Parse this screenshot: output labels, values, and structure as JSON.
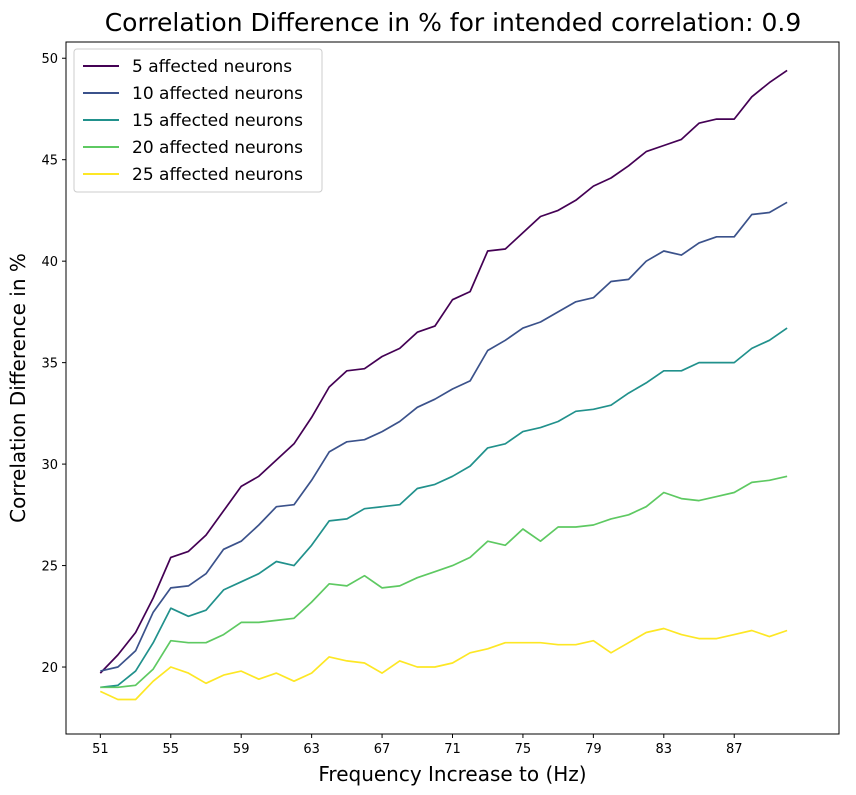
{
  "chart_data": {
    "type": "line",
    "title": "Correlation Difference in % for intended correlation:  0.9",
    "xlabel": "Frequency Increase to (Hz)",
    "ylabel": "Correlation Difference in %",
    "xlim": [
      49.05,
      92.95
    ],
    "ylim": [
      16.7,
      50.8
    ],
    "xticks": [
      51,
      55,
      59,
      63,
      67,
      71,
      75,
      79,
      83,
      87
    ],
    "yticks": [
      20,
      25,
      30,
      35,
      40,
      45,
      50
    ],
    "grid": false,
    "legend_position": "top-left",
    "x": [
      51,
      52,
      53,
      54,
      55,
      56,
      57,
      58,
      59,
      60,
      61,
      62,
      63,
      64,
      65,
      66,
      67,
      68,
      69,
      70,
      71,
      72,
      73,
      74,
      75,
      76,
      77,
      78,
      79,
      80,
      81,
      82,
      83,
      84,
      85,
      86,
      87,
      88,
      89,
      90
    ],
    "series": [
      {
        "name": "5 affected neurons",
        "color": "#440154",
        "values": [
          19.7,
          20.6,
          21.7,
          23.4,
          25.4,
          25.7,
          26.5,
          27.7,
          28.9,
          29.4,
          30.2,
          31.0,
          32.3,
          33.8,
          34.6,
          34.7,
          35.3,
          35.7,
          36.5,
          36.8,
          38.1,
          38.5,
          40.5,
          40.6,
          41.4,
          42.2,
          42.5,
          43.0,
          43.7,
          44.1,
          44.7,
          45.4,
          45.7,
          46.0,
          46.8,
          47.0,
          47.0,
          48.1,
          48.8,
          49.4
        ]
      },
      {
        "name": "10 affected neurons",
        "color": "#3b528b",
        "values": [
          19.8,
          20.0,
          20.8,
          22.7,
          23.9,
          24.0,
          24.6,
          25.8,
          26.2,
          27.0,
          27.9,
          28.0,
          29.2,
          30.6,
          31.1,
          31.2,
          31.6,
          32.1,
          32.8,
          33.2,
          33.7,
          34.1,
          35.6,
          36.1,
          36.7,
          37.0,
          37.5,
          38.0,
          38.2,
          39.0,
          39.1,
          40.0,
          40.5,
          40.3,
          40.9,
          41.2,
          41.2,
          42.3,
          42.4,
          42.9
        ]
      },
      {
        "name": "15 affected neurons",
        "color": "#21918c",
        "values": [
          19.0,
          19.1,
          19.8,
          21.2,
          22.9,
          22.5,
          22.8,
          23.8,
          24.2,
          24.6,
          25.2,
          25.0,
          26.0,
          27.2,
          27.3,
          27.8,
          27.9,
          28.0,
          28.8,
          29.0,
          29.4,
          29.9,
          30.8,
          31.0,
          31.6,
          31.8,
          32.1,
          32.6,
          32.7,
          32.9,
          33.5,
          34.0,
          34.6,
          34.6,
          35.0,
          35.0,
          35.0,
          35.7,
          36.1,
          36.7
        ]
      },
      {
        "name": "20 affected neurons",
        "color": "#5ec962",
        "values": [
          19.0,
          19.0,
          19.1,
          19.9,
          21.3,
          21.2,
          21.2,
          21.6,
          22.2,
          22.2,
          22.3,
          22.4,
          23.2,
          24.1,
          24.0,
          24.5,
          23.9,
          24.0,
          24.4,
          24.7,
          25.0,
          25.4,
          26.2,
          26.0,
          26.8,
          26.2,
          26.9,
          26.9,
          27.0,
          27.3,
          27.5,
          27.9,
          28.6,
          28.3,
          28.2,
          28.4,
          28.6,
          29.1,
          29.2,
          29.4
        ]
      },
      {
        "name": "25 affected neurons",
        "color": "#fde725",
        "values": [
          18.8,
          18.4,
          18.4,
          19.3,
          20.0,
          19.7,
          19.2,
          19.6,
          19.8,
          19.4,
          19.7,
          19.3,
          19.7,
          20.5,
          20.3,
          20.2,
          19.7,
          20.3,
          20.0,
          20.0,
          20.2,
          20.7,
          20.9,
          21.2,
          21.2,
          21.2,
          21.1,
          21.1,
          21.3,
          20.7,
          21.2,
          21.7,
          21.9,
          21.6,
          21.4,
          21.4,
          21.6,
          21.8,
          21.5,
          21.8
        ]
      }
    ]
  }
}
